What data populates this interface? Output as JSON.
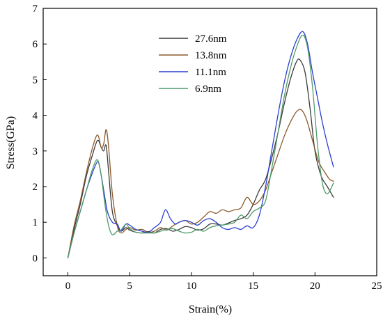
{
  "chart_data": {
    "type": "line",
    "title": "",
    "xlabel": "Strain(%)",
    "ylabel": "Stress(GPa)",
    "xlim": [
      -2,
      25
    ],
    "ylim": [
      -0.5,
      7
    ],
    "xticks": [
      0,
      5,
      10,
      15,
      20,
      25
    ],
    "yticks": [
      0,
      1,
      2,
      3,
      4,
      5,
      6,
      7
    ],
    "grid": false,
    "legend_position": "top-center",
    "series": [
      {
        "name": "27.6nm",
        "color": "#3a3a3a",
        "points": [
          [
            0,
            0
          ],
          [
            0.5,
            0.8
          ],
          [
            1,
            1.5
          ],
          [
            1.5,
            2.3
          ],
          [
            2,
            2.9
          ],
          [
            2.4,
            3.3
          ],
          [
            2.7,
            3.1
          ],
          [
            2.9,
            3.0
          ],
          [
            3.1,
            3.15
          ],
          [
            3.3,
            2.4
          ],
          [
            3.6,
            1.3
          ],
          [
            4,
            0.9
          ],
          [
            4.3,
            0.75
          ],
          [
            4.7,
            0.85
          ],
          [
            5,
            0.78
          ],
          [
            5.5,
            0.72
          ],
          [
            6,
            0.7
          ],
          [
            6.5,
            0.74
          ],
          [
            7,
            0.7
          ],
          [
            7.5,
            0.8
          ],
          [
            8,
            0.82
          ],
          [
            8.5,
            0.75
          ],
          [
            9,
            0.8
          ],
          [
            9.5,
            0.88
          ],
          [
            10,
            0.85
          ],
          [
            10.5,
            0.78
          ],
          [
            11,
            0.82
          ],
          [
            11.5,
            0.95
          ],
          [
            12,
            0.95
          ],
          [
            12.5,
            0.92
          ],
          [
            13,
            0.98
          ],
          [
            13.5,
            1.05
          ],
          [
            14,
            1.1
          ],
          [
            14.5,
            1.2
          ],
          [
            15,
            1.5
          ],
          [
            15.5,
            1.9
          ],
          [
            16,
            2.2
          ],
          [
            16.5,
            2.8
          ],
          [
            17,
            3.5
          ],
          [
            17.5,
            4.3
          ],
          [
            18,
            5.0
          ],
          [
            18.5,
            5.5
          ],
          [
            18.8,
            5.55
          ],
          [
            19.2,
            5.2
          ],
          [
            19.6,
            4.2
          ],
          [
            20,
            3.0
          ],
          [
            20.5,
            2.3
          ],
          [
            21,
            2.0
          ],
          [
            21.5,
            1.7
          ]
        ]
      },
      {
        "name": "13.8nm",
        "color": "#8b5a2b",
        "points": [
          [
            0,
            0
          ],
          [
            0.5,
            0.9
          ],
          [
            1,
            1.6
          ],
          [
            1.5,
            2.4
          ],
          [
            2,
            3.1
          ],
          [
            2.4,
            3.45
          ],
          [
            2.7,
            3.1
          ],
          [
            2.9,
            3.2
          ],
          [
            3.1,
            3.6
          ],
          [
            3.3,
            3.1
          ],
          [
            3.6,
            1.8
          ],
          [
            4,
            0.9
          ],
          [
            4.3,
            0.7
          ],
          [
            4.7,
            0.8
          ],
          [
            5,
            0.85
          ],
          [
            5.5,
            0.78
          ],
          [
            6,
            0.8
          ],
          [
            6.5,
            0.72
          ],
          [
            7,
            0.75
          ],
          [
            7.5,
            0.85
          ],
          [
            8,
            0.78
          ],
          [
            8.5,
            0.9
          ],
          [
            9,
            1.0
          ],
          [
            9.5,
            1.05
          ],
          [
            10,
            0.95
          ],
          [
            10.5,
            1.0
          ],
          [
            11,
            1.15
          ],
          [
            11.5,
            1.3
          ],
          [
            12,
            1.25
          ],
          [
            12.5,
            1.35
          ],
          [
            13,
            1.3
          ],
          [
            13.5,
            1.35
          ],
          [
            14,
            1.4
          ],
          [
            14.5,
            1.7
          ],
          [
            15,
            1.5
          ],
          [
            15.5,
            1.6
          ],
          [
            16,
            1.9
          ],
          [
            16.5,
            2.4
          ],
          [
            17,
            2.9
          ],
          [
            17.5,
            3.4
          ],
          [
            18,
            3.8
          ],
          [
            18.5,
            4.1
          ],
          [
            18.9,
            4.15
          ],
          [
            19.3,
            3.9
          ],
          [
            19.8,
            3.3
          ],
          [
            20.3,
            2.7
          ],
          [
            20.8,
            2.4
          ],
          [
            21.2,
            2.2
          ],
          [
            21.5,
            2.15
          ]
        ]
      },
      {
        "name": "11.1nm",
        "color": "#2a3fcf",
        "points": [
          [
            0,
            0
          ],
          [
            0.5,
            0.7
          ],
          [
            1,
            1.3
          ],
          [
            1.5,
            1.9
          ],
          [
            2,
            2.4
          ],
          [
            2.4,
            2.7
          ],
          [
            2.6,
            2.5
          ],
          [
            2.9,
            1.9
          ],
          [
            3.2,
            1.3
          ],
          [
            3.6,
            1.0
          ],
          [
            4,
            0.95
          ],
          [
            4.3,
            0.75
          ],
          [
            4.7,
            0.95
          ],
          [
            5,
            0.92
          ],
          [
            5.5,
            0.8
          ],
          [
            6,
            0.75
          ],
          [
            6.5,
            0.72
          ],
          [
            7,
            0.85
          ],
          [
            7.5,
            1.0
          ],
          [
            7.9,
            1.35
          ],
          [
            8.3,
            1.1
          ],
          [
            8.7,
            0.95
          ],
          [
            9,
            1.0
          ],
          [
            9.5,
            1.05
          ],
          [
            10,
            1.0
          ],
          [
            10.5,
            0.92
          ],
          [
            11,
            1.05
          ],
          [
            11.5,
            1.1
          ],
          [
            12,
            1.0
          ],
          [
            12.5,
            0.85
          ],
          [
            13,
            0.8
          ],
          [
            13.5,
            0.85
          ],
          [
            14,
            0.8
          ],
          [
            14.5,
            0.9
          ],
          [
            15,
            0.85
          ],
          [
            15.5,
            1.2
          ],
          [
            16,
            2.0
          ],
          [
            16.5,
            3.0
          ],
          [
            17,
            4.0
          ],
          [
            17.5,
            4.9
          ],
          [
            18,
            5.6
          ],
          [
            18.5,
            6.1
          ],
          [
            19,
            6.35
          ],
          [
            19.4,
            6.0
          ],
          [
            19.8,
            5.2
          ],
          [
            20.2,
            4.5
          ],
          [
            20.6,
            3.8
          ],
          [
            21,
            3.2
          ],
          [
            21.5,
            2.55
          ]
        ]
      },
      {
        "name": "6.9nm",
        "color": "#4f9a6a",
        "points": [
          [
            0,
            0
          ],
          [
            0.5,
            0.7
          ],
          [
            1,
            1.3
          ],
          [
            1.5,
            1.9
          ],
          [
            2,
            2.5
          ],
          [
            2.4,
            2.75
          ],
          [
            2.7,
            2.3
          ],
          [
            3.0,
            1.5
          ],
          [
            3.3,
            0.9
          ],
          [
            3.6,
            0.65
          ],
          [
            4,
            0.75
          ],
          [
            4.3,
            0.78
          ],
          [
            4.7,
            0.95
          ],
          [
            5,
            0.82
          ],
          [
            5.5,
            0.72
          ],
          [
            6,
            0.7
          ],
          [
            6.5,
            0.7
          ],
          [
            7,
            0.7
          ],
          [
            7.5,
            0.75
          ],
          [
            8,
            0.8
          ],
          [
            8.5,
            0.82
          ],
          [
            9,
            0.75
          ],
          [
            9.5,
            0.7
          ],
          [
            10,
            0.72
          ],
          [
            10.5,
            0.8
          ],
          [
            11,
            0.75
          ],
          [
            11.5,
            0.85
          ],
          [
            12,
            0.9
          ],
          [
            12.5,
            0.92
          ],
          [
            13,
            0.95
          ],
          [
            13.5,
            1.0
          ],
          [
            14,
            1.2
          ],
          [
            14.5,
            1.1
          ],
          [
            15,
            1.3
          ],
          [
            15.5,
            1.4
          ],
          [
            16,
            1.6
          ],
          [
            16.5,
            2.5
          ],
          [
            17,
            3.5
          ],
          [
            17.5,
            4.5
          ],
          [
            18,
            5.3
          ],
          [
            18.5,
            5.9
          ],
          [
            19,
            6.25
          ],
          [
            19.4,
            5.9
          ],
          [
            19.8,
            4.8
          ],
          [
            20.2,
            3.2
          ],
          [
            20.6,
            2.1
          ],
          [
            21,
            1.8
          ],
          [
            21.5,
            2.1
          ]
        ]
      }
    ]
  }
}
